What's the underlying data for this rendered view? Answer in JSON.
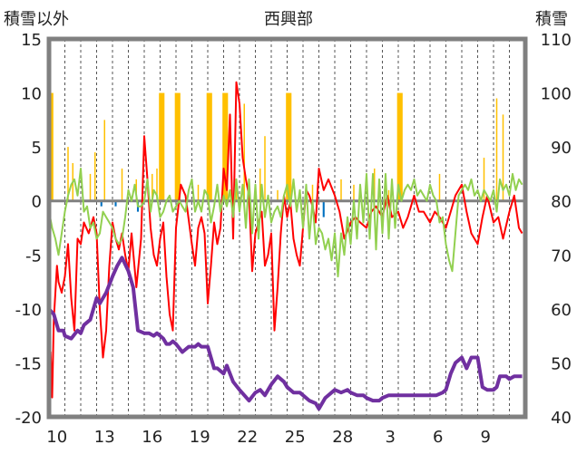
{
  "chart_data": {
    "type": "line",
    "title": "西興部",
    "left_axis_label": "積雪以外",
    "right_axis_label": "積雪",
    "left_ylim": [
      -20,
      15
    ],
    "left_yticks": [
      -20,
      -15,
      -10,
      -5,
      0,
      5,
      10,
      15
    ],
    "right_ylim": [
      40,
      110
    ],
    "right_yticks": [
      40,
      50,
      60,
      70,
      80,
      90,
      100,
      110
    ],
    "x_range": [
      0,
      30
    ],
    "x_tick_positions": [
      1,
      4,
      7,
      10,
      13,
      16,
      19,
      22,
      25,
      28
    ],
    "x_tick_labels": [
      "10",
      "13",
      "16",
      "19",
      "22",
      "25",
      "28",
      "3",
      "6",
      "9"
    ],
    "grid": "vertical dashed daily",
    "colors": {
      "red": "#ff0000",
      "green": "#92d050",
      "orange": "#ffc000",
      "blue": "#0070c0",
      "purple": "#7030a0",
      "frame": "#808080"
    },
    "series": [
      {
        "color": "red",
        "axis": "left",
        "x": [
          0,
          0.1,
          0.2,
          0.3,
          0.5,
          0.6,
          0.8,
          1.0,
          1.2,
          1.4,
          1.6,
          1.8,
          2.0,
          2.2,
          2.5,
          2.8,
          3.0,
          3.2,
          3.4,
          3.6,
          3.8,
          4.0,
          4.2,
          4.4,
          4.6,
          4.8,
          5.0,
          5.2,
          5.5,
          5.8,
          6.0,
          6.2,
          6.4,
          6.6,
          6.8,
          7.0,
          7.2,
          7.4,
          7.6,
          7.8,
          8.0,
          8.3,
          8.6,
          9.0,
          9.2,
          9.4,
          9.6,
          9.8,
          10.0,
          10.2,
          10.4,
          10.6,
          10.8,
          11.0,
          11.2,
          11.4,
          11.6,
          11.8,
          12.0,
          12.2,
          12.4,
          12.6,
          12.8,
          13.0,
          13.2,
          13.4,
          13.6,
          13.8,
          14.0,
          14.2,
          14.4,
          14.6,
          14.8,
          15.0,
          15.2,
          15.4,
          15.6,
          15.8,
          16.0,
          16.2,
          16.4,
          16.6,
          16.8,
          17.0,
          17.3,
          17.6,
          18.0,
          18.3,
          18.6,
          19.0,
          19.3,
          19.6,
          20.0,
          20.3,
          20.6,
          21.0,
          21.3,
          21.6,
          22.0,
          22.3,
          22.6,
          23.0,
          23.3,
          23.6,
          24.0,
          24.3,
          24.6,
          25.0,
          25.3,
          25.6,
          26.0,
          26.3,
          26.6,
          27.0,
          27.3,
          27.6,
          28.0,
          28.3,
          28.6,
          29.0,
          29.3,
          29.6,
          29.8
        ],
        "y": [
          -17.5,
          -14.0,
          -18.2,
          -11.0,
          -6.0,
          -7.5,
          -8.5,
          -7.0,
          -4.0,
          -9.0,
          -12.0,
          -3.5,
          -4.0,
          -2.0,
          -3.0,
          -1.5,
          -3.0,
          -10.0,
          -14.5,
          -12.0,
          -6.0,
          -2.0,
          -3.5,
          -4.5,
          -3.0,
          -5.0,
          -6.5,
          -3.0,
          -8.0,
          -3.5,
          6.0,
          2.0,
          -2.5,
          -5.0,
          -6.0,
          -3.5,
          -2.0,
          -7.0,
          -10.5,
          -12.0,
          -2.5,
          1.5,
          0.5,
          -4.0,
          -6.0,
          -2.5,
          -1.5,
          -3.0,
          -9.5,
          -6.0,
          -2.0,
          -4.0,
          -2.5,
          3.0,
          1.0,
          8.0,
          -3.5,
          11.0,
          9.0,
          4.0,
          2.0,
          0.5,
          -6.5,
          -3.0,
          -2.0,
          -1.0,
          -6.0,
          -5.0,
          -3.0,
          -12.0,
          -8.0,
          -3.0,
          0.5,
          -1.5,
          0.0,
          -3.5,
          -5.0,
          -6.0,
          -2.5,
          1.0,
          0.5,
          -0.5,
          -2.0,
          3.0,
          1.0,
          2.0,
          0.5,
          -1.0,
          -3.5,
          -2.0,
          -1.5,
          -2.0,
          -2.5,
          -1.0,
          -0.5,
          -1.5,
          0.5,
          -1.5,
          -1.0,
          -2.5,
          -1.5,
          0.5,
          -1.0,
          -1.0,
          -2.0,
          -1.0,
          -1.5,
          -2.5,
          -1.0,
          0.5,
          1.5,
          -1.0,
          -3.0,
          -4.0,
          -1.5,
          0.5,
          -2.0,
          -1.5,
          -3.5,
          -1.0,
          0.5,
          -2.5,
          -3.0
        ]
      },
      {
        "color": "green",
        "axis": "left",
        "x": [
          0,
          0.2,
          0.4,
          0.6,
          0.8,
          1.0,
          1.2,
          1.4,
          1.6,
          1.8,
          2.0,
          2.2,
          2.4,
          2.6,
          2.8,
          3.0,
          3.2,
          3.4,
          3.6,
          3.8,
          4.0,
          4.2,
          4.4,
          4.6,
          4.8,
          5.0,
          5.2,
          5.4,
          5.6,
          5.8,
          6.0,
          6.2,
          6.4,
          6.6,
          6.8,
          7.0,
          7.2,
          7.4,
          7.6,
          7.8,
          8.0,
          8.2,
          8.4,
          8.6,
          8.8,
          9.0,
          9.2,
          9.4,
          9.6,
          9.8,
          10.0,
          10.2,
          10.4,
          10.6,
          10.8,
          11.0,
          11.2,
          11.4,
          11.6,
          11.8,
          12.0,
          12.2,
          12.4,
          12.6,
          12.8,
          13.0,
          13.2,
          13.4,
          13.6,
          13.8,
          14.0,
          14.2,
          14.4,
          14.6,
          14.8,
          15.0,
          15.2,
          15.4,
          15.6,
          15.8,
          16.0,
          16.2,
          16.4,
          16.6,
          16.8,
          17.0,
          17.2,
          17.4,
          17.6,
          17.8,
          18.0,
          18.2,
          18.4,
          18.6,
          18.8,
          19.0,
          19.2,
          19.4,
          19.6,
          19.8,
          20.0,
          20.2,
          20.4,
          20.6,
          20.8,
          21.0,
          21.2,
          21.4,
          21.6,
          21.8,
          22.0,
          22.2,
          22.4,
          22.6,
          22.8,
          23.0,
          23.2,
          23.4,
          23.6,
          23.8,
          24.0,
          24.2,
          24.4,
          24.6,
          24.8,
          25.0,
          25.2,
          25.4,
          25.6,
          25.8,
          26.0,
          26.2,
          26.4,
          26.6,
          26.8,
          27.0,
          27.2,
          27.4,
          27.6,
          27.8,
          28.0,
          28.2,
          28.4,
          28.6,
          28.8,
          29.0,
          29.2,
          29.4,
          29.6,
          29.8
        ],
        "y": [
          -1.0,
          -2.5,
          -3.5,
          -5.0,
          -3.0,
          -1.0,
          0.5,
          1.5,
          2.0,
          0.5,
          3.0,
          -1.0,
          -0.5,
          -2.5,
          -2.0,
          -3.5,
          -3.0,
          -1.0,
          -1.5,
          -2.0,
          -2.5,
          -3.5,
          -4.0,
          -3.5,
          -1.5,
          1.0,
          0.0,
          1.5,
          -0.5,
          -0.5,
          0.0,
          2.0,
          -1.0,
          1.0,
          0.5,
          -1.5,
          -1.0,
          0.0,
          0.5,
          -1.0,
          -0.5,
          0.0,
          -0.5,
          -1.0,
          1.0,
          2.0,
          -1.0,
          0.0,
          -1.0,
          1.0,
          0.5,
          -2.0,
          -0.5,
          1.5,
          -1.0,
          0.5,
          -0.5,
          1.0,
          -1.5,
          2.0,
          -1.0,
          1.5,
          -2.5,
          2.0,
          -3.0,
          1.5,
          -3.5,
          1.5,
          -1.5,
          0.5,
          -2.0,
          -1.0,
          -0.5,
          -1.5,
          0.5,
          1.5,
          -0.5,
          2.0,
          -1.0,
          1.0,
          -2.5,
          1.5,
          -3.5,
          0.0,
          -4.0,
          -2.5,
          -3.0,
          -4.5,
          -3.5,
          -5.5,
          -3.0,
          -7.0,
          -3.0,
          -5.0,
          -1.5,
          -4.0,
          0.0,
          -3.5,
          1.5,
          -2.0,
          2.5,
          -3.5,
          2.5,
          -4.5,
          2.0,
          -3.0,
          2.5,
          -3.5,
          2.0,
          -2.5,
          1.5,
          0.0,
          1.0,
          1.5,
          1.0,
          2.0,
          0.5,
          1.0,
          0.5,
          0.0,
          1.5,
          0.5,
          0.0,
          -2.0,
          -1.5,
          -4.0,
          -5.5,
          -6.5,
          -3.0,
          0.5,
          1.0,
          1.5,
          1.0,
          2.0,
          0.5,
          1.0,
          0.0,
          1.0,
          0.5,
          0.0,
          1.0,
          -1.0,
          2.0,
          1.0,
          1.5,
          0.5,
          2.5,
          1.0,
          2.0,
          1.5
        ]
      },
      {
        "color": "purple",
        "axis": "right",
        "x": [
          0,
          0.3,
          0.6,
          0.9,
          1.0,
          1.4,
          1.8,
          2.0,
          2.2,
          2.6,
          3.0,
          3.2,
          3.6,
          4.0,
          4.3,
          4.6,
          5.0,
          5.3,
          5.6,
          6.0,
          6.3,
          6.6,
          6.8,
          7.0,
          7.2,
          7.4,
          7.6,
          7.8,
          8.0,
          8.4,
          8.8,
          9.2,
          9.4,
          9.6,
          10.0,
          10.4,
          10.6,
          11.0,
          11.2,
          11.6,
          12.0,
          12.3,
          12.6,
          13.0,
          13.3,
          13.6,
          14.0,
          14.4,
          14.8,
          15.0,
          15.4,
          15.8,
          16.0,
          16.4,
          16.8,
          17.0,
          17.4,
          17.8,
          18.0,
          18.4,
          18.8,
          19.0,
          19.4,
          19.8,
          20.0,
          20.4,
          20.8,
          21.0,
          21.4,
          21.8,
          22.0,
          22.4,
          22.8,
          23.0,
          23.4,
          23.8,
          24.0,
          24.4,
          24.8,
          25.0,
          25.3,
          25.6,
          26.0,
          26.3,
          26.6,
          27.0,
          27.3,
          27.6,
          28.0,
          28.2,
          28.4,
          28.8,
          29.0,
          29.3,
          29.6,
          29.8
        ],
        "y": [
          60.0,
          59.0,
          56.0,
          56.0,
          55.0,
          54.5,
          56.0,
          55.5,
          57.0,
          58.0,
          62.0,
          61.0,
          63.0,
          66.0,
          68.0,
          69.5,
          67.0,
          64.0,
          56.0,
          55.5,
          55.5,
          55.0,
          55.5,
          55.0,
          54.5,
          53.5,
          53.5,
          54.0,
          53.5,
          52.0,
          53.0,
          53.0,
          53.5,
          53.0,
          53.0,
          49.0,
          49.0,
          48.0,
          49.5,
          46.5,
          45.0,
          44.0,
          43.0,
          44.5,
          45.0,
          44.0,
          46.0,
          47.5,
          46.5,
          45.5,
          44.5,
          44.5,
          44.0,
          43.0,
          42.5,
          41.5,
          43.5,
          44.5,
          45.0,
          44.5,
          45.0,
          44.5,
          44.0,
          44.0,
          43.5,
          43.0,
          43.0,
          43.5,
          44.0,
          44.0,
          44.0,
          44.0,
          44.0,
          44.0,
          44.0,
          44.0,
          44.0,
          44.0,
          44.5,
          45.0,
          48.0,
          50.0,
          51.0,
          49.0,
          51.0,
          51.0,
          45.5,
          45.0,
          45.0,
          45.5,
          47.5,
          47.5,
          47.0,
          47.5,
          47.5,
          47.5
        ]
      }
    ],
    "bars": [
      {
        "color": "orange",
        "axis": "left",
        "width": 0.35,
        "x": [
          0.1,
          7.1,
          8.1,
          10.1,
          11.1,
          15.1,
          22.1
        ],
        "values": [
          10.0,
          10.0,
          10.0,
          10.0,
          10.0,
          10.0,
          10.0
        ]
      },
      {
        "color": "orange",
        "axis": "left",
        "width": 0.06,
        "x": [
          1.2,
          1.5,
          2.6,
          2.9,
          3.5,
          4.6,
          5.5,
          6.5,
          6.8,
          9.4,
          11.8,
          12.3,
          13.3,
          13.6,
          14.4,
          16.6,
          18.4,
          19.2,
          20.5,
          21.4,
          24.6,
          27.4,
          28.2,
          28.6
        ],
        "values": [
          5.0,
          3.5,
          2.5,
          4.5,
          7.5,
          3.0,
          2.0,
          2.5,
          3.0,
          1.5,
          1.0,
          9.0,
          3.0,
          6.0,
          1.0,
          1.5,
          2.0,
          1.5,
          3.0,
          1.0,
          2.5,
          4.0,
          9.5,
          8.0
        ]
      },
      {
        "color": "blue",
        "axis": "left",
        "width": 0.12,
        "x": [
          3.3,
          4.2,
          5.6,
          17.3,
          19.2
        ],
        "values": [
          -0.5,
          -0.5,
          -1.0,
          -1.5,
          -0.8
        ]
      }
    ]
  }
}
